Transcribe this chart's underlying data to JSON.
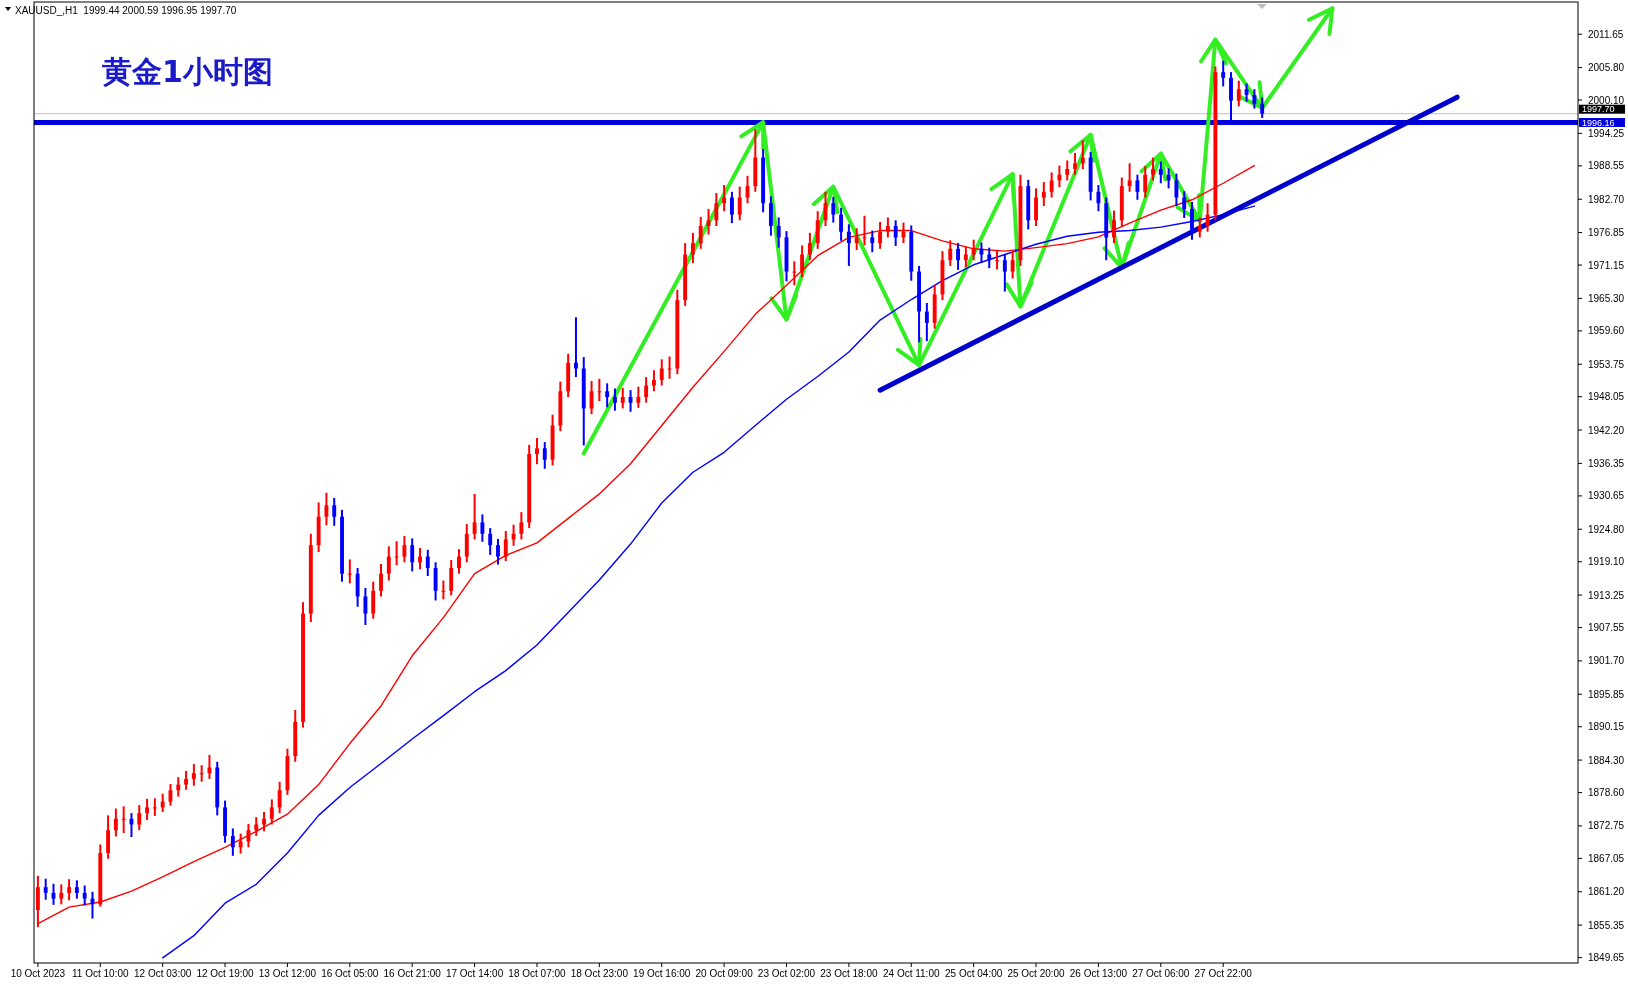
{
  "chart_data": {
    "type": "candlestick",
    "title": "黄金1小时图",
    "annotations": [
      "XAUUSD_,H1  1999.44 2000.59 1996.95 1997.70"
    ],
    "categories": [
      "10 Oct 2023",
      null,
      null,
      null,
      null,
      null,
      null,
      null,
      "11 Oct 10:00",
      null,
      null,
      null,
      null,
      null,
      null,
      null,
      "12 Oct 03:00",
      null,
      null,
      null,
      null,
      null,
      null,
      null,
      "12 Oct 19:00",
      null,
      null,
      null,
      null,
      null,
      null,
      null,
      "13 Oct 12:00",
      null,
      null,
      null,
      null,
      null,
      null,
      null,
      "16 Oct 05:00",
      null,
      null,
      null,
      null,
      null,
      null,
      null,
      "16 Oct 21:00",
      null,
      null,
      null,
      null,
      null,
      null,
      null,
      "17 Oct 14:00",
      null,
      null,
      null,
      null,
      null,
      null,
      null,
      "18 Oct 07:00",
      null,
      null,
      null,
      null,
      null,
      null,
      null,
      "18 Oct 23:00",
      null,
      null,
      null,
      null,
      null,
      null,
      null,
      "19 Oct 16:00",
      null,
      null,
      null,
      null,
      null,
      null,
      null,
      "20 Oct 09:00",
      null,
      null,
      null,
      null,
      null,
      null,
      null,
      "23 Oct 02:00",
      null,
      null,
      null,
      null,
      null,
      null,
      null,
      "23 Oct 18:00",
      null,
      null,
      null,
      null,
      null,
      null,
      null,
      "24 Oct 11:00",
      null,
      null,
      null,
      null,
      null,
      null,
      null,
      "25 Oct 04:00",
      null,
      null,
      null,
      null,
      null,
      null,
      null,
      "25 Oct 20:00",
      null,
      null,
      null,
      null,
      null,
      null,
      null,
      "26 Oct 13:00",
      null,
      null,
      null,
      null,
      null,
      null,
      null,
      "27 Oct 06:00",
      null,
      null,
      null,
      null,
      null,
      null,
      null,
      "27 Oct 22:00",
      null,
      null,
      null,
      null,
      null,
      null,
      null,
      null,
      null,
      null,
      null,
      null,
      null,
      null,
      null,
      null,
      null,
      null,
      null,
      null,
      null,
      null,
      null,
      null,
      null,
      null,
      null,
      null,
      null,
      null,
      null,
      null,
      null,
      null,
      null,
      null,
      null,
      null,
      null,
      null,
      null,
      null,
      null,
      null,
      null
    ],
    "colors": [
      "#ff0000",
      "#0000ff",
      "#0000ff",
      "#ff0000",
      "#ff0000",
      "#0000ff",
      "#0000ff",
      "#0000ff",
      "#ff0000",
      "#ff0000",
      "#ff0000",
      "#ff0000",
      "#0000ff",
      "#ff0000",
      "#ff0000",
      "#ff0000",
      "#ff0000",
      "#ff0000",
      "#ff0000",
      "#ff0000",
      "#ff0000",
      "#ff0000",
      "#ff0000",
      "#0000ff",
      "#0000ff",
      "#0000ff",
      "#ff0000",
      "#ff0000",
      "#ff0000",
      "#ff0000",
      "#ff0000",
      "#ff0000",
      "#ff0000",
      "#ff0000",
      "#ff0000",
      "#ff0000",
      "#ff0000",
      "#ff0000",
      "#0000ff",
      "#0000ff",
      "#ff0000",
      "#0000ff",
      "#0000ff",
      "#ff0000",
      "#ff0000",
      "#ff0000",
      "#ff0000",
      "#ff0000",
      "#0000ff",
      "#ff0000",
      "#0000ff",
      "#0000ff",
      "#ff0000",
      "#ff0000",
      "#ff0000",
      "#ff0000",
      "#ff0000",
      "#0000ff",
      "#0000ff",
      "#0000ff",
      "#ff0000",
      "#ff0000",
      "#ff0000",
      "#ff0000",
      "#ff0000",
      "#0000ff",
      "#ff0000",
      "#ff0000",
      "#ff0000",
      "#0000ff",
      "#0000ff",
      "#ff0000",
      "#ff0000",
      "#0000ff",
      "#0000ff",
      "#ff0000",
      "#0000ff",
      "#ff0000",
      "#ff0000",
      "#ff0000",
      "#ff0000",
      "#ff0000",
      "#ff0000",
      "#ff0000",
      "#ff0000",
      "#ff0000",
      "#ff0000",
      "#ff0000",
      "#ff0000",
      "#0000ff",
      "#ff0000",
      "#ff0000",
      "#ff0000",
      "#0000ff",
      "#0000ff",
      "#0000ff",
      "#0000ff",
      "#ff0000",
      "#ff0000",
      "#ff0000",
      "#ff0000",
      "#ff0000",
      "#0000ff",
      "#0000ff",
      "#0000ff",
      "#ff0000",
      "#ff0000",
      "#0000ff",
      "#ff0000",
      "#ff0000",
      "#0000ff",
      "#ff0000",
      "#0000ff",
      "#0000ff",
      "#0000ff",
      "#ff0000",
      "#ff0000",
      "#ff0000",
      "#0000ff",
      "#ff0000",
      "#ff0000",
      "#0000ff",
      "#0000ff",
      "#ff0000",
      "#0000ff",
      "#ff0000",
      "#ff0000",
      "#0000ff",
      "#ff0000",
      "#ff0000",
      "#ff0000",
      "#ff0000",
      "#ff0000",
      "#ff0000",
      "#ff0000",
      "#0000ff",
      "#0000ff",
      "#0000ff",
      "#ff0000",
      "#ff0000",
      "#ff0000",
      "#0000ff",
      "#ff0000",
      "#ff0000",
      "#0000ff",
      "#0000ff",
      "#0000ff",
      "#0000ff",
      "#0000ff",
      "#ff0000",
      "#ff0000",
      "#ff0000",
      "#0000ff",
      "#0000ff",
      "#ff0000",
      "#0000ff",
      "#0000ff",
      "#0000ff",
      null,
      null,
      null,
      null,
      null,
      null,
      null,
      null,
      null,
      null,
      null,
      null,
      null,
      null,
      null,
      null,
      null,
      null,
      null,
      null,
      null,
      null,
      null,
      null,
      null,
      null,
      null,
      null,
      null,
      null,
      null,
      null,
      null,
      null,
      null,
      null,
      null,
      null,
      null,
      null
    ],
    "ylim": [
      1848.7,
      2017.3
    ],
    "yticks": [
      2011.65,
      {
        "value": 2005.8,
        "label": "2005.80"
      },
      {
        "value": 2000.1,
        "label": "2000.10"
      },
      1994.25,
      1988.55,
      {
        "value": 1982.7,
        "label": "1982.70"
      },
      1976.85,
      1971.15,
      {
        "value": 1965.3,
        "label": "1965.30"
      },
      {
        "value": 1959.6,
        "label": "1959.60"
      },
      1953.75,
      1948.05,
      {
        "value": 1942.2,
        "label": "1942.20"
      },
      1936.35,
      1930.65,
      {
        "value": 1924.8,
        "label": "1924.80"
      },
      {
        "value": 1919.1,
        "label": "1919.10"
      },
      1913.25,
      1907.55,
      {
        "value": 1901.7,
        "label": "1901.70"
      },
      1895.85,
      1890.15,
      {
        "value": 1884.3,
        "label": "1884.30"
      },
      {
        "value": 1878.6,
        "label": "1878.60"
      },
      1872.75,
      1867.05,
      {
        "value": 1861.2,
        "label": "1861.20"
      },
      1855.35,
      1849.65
    ],
    "ref_lines": [
      {
        "axis": "y",
        "value": 1997.7,
        "label": "1997.70",
        "color": "#c0c0c0"
      },
      {
        "axis": "y",
        "value": 1996.16,
        "label": "1996.16",
        "color": "#0000dd"
      }
    ],
    "ohlc": [
      [
        1858,
        1864,
        1855,
        1862
      ],
      [
        1862,
        1863.5,
        1859.8,
        1861
      ],
      [
        1861,
        1862.6,
        1858.9,
        1860
      ],
      [
        1860,
        1862.5,
        1859,
        1861
      ],
      [
        1861,
        1863.4,
        1859.7,
        1862
      ],
      [
        1862,
        1863.2,
        1860,
        1861
      ],
      [
        1861,
        1862.3,
        1858.8,
        1860
      ],
      [
        1860,
        1861.2,
        1856.5,
        1859
      ],
      [
        1859,
        1869.5,
        1858.6,
        1868
      ],
      [
        1868,
        1874.6,
        1867,
        1872
      ],
      [
        1872,
        1875.8,
        1870.9,
        1874
      ],
      [
        1874,
        1876.2,
        1871.5,
        1874
      ],
      [
        1874,
        1875,
        1870.8,
        1873
      ],
      [
        1873,
        1876.4,
        1872,
        1875
      ],
      [
        1875,
        1877.5,
        1873.8,
        1876
      ],
      [
        1876,
        1877.6,
        1874.5,
        1876
      ],
      [
        1876,
        1878.4,
        1875.2,
        1877
      ],
      [
        1877,
        1880.1,
        1876.3,
        1879
      ],
      [
        1879,
        1881.3,
        1877.9,
        1880
      ],
      [
        1880,
        1882.4,
        1879.1,
        1881
      ],
      [
        1881,
        1883.6,
        1879.8,
        1882
      ],
      [
        1882,
        1883.4,
        1880.5,
        1882
      ],
      [
        1882,
        1885.2,
        1881,
        1883
      ],
      [
        1883,
        1884,
        1874.6,
        1876
      ],
      [
        1876,
        1877.2,
        1869.8,
        1871
      ],
      [
        1871,
        1872.3,
        1867.5,
        1869
      ],
      [
        1869,
        1871.4,
        1867.9,
        1870
      ],
      [
        1870,
        1873.1,
        1869,
        1872
      ],
      [
        1872,
        1874.3,
        1871,
        1873
      ],
      [
        1873,
        1875.2,
        1871.8,
        1874
      ],
      [
        1874,
        1877.4,
        1873,
        1876
      ],
      [
        1876,
        1880.5,
        1875,
        1879
      ],
      [
        1879,
        1886.3,
        1878.2,
        1885
      ],
      [
        1885,
        1893.1,
        1884,
        1891
      ],
      [
        1891,
        1912,
        1890,
        1910
      ],
      [
        1910,
        1924,
        1908.5,
        1922
      ],
      [
        1922,
        1929.5,
        1920.8,
        1927
      ],
      [
        1927,
        1931.2,
        1925.5,
        1929
      ],
      [
        1929,
        1930.3,
        1925.4,
        1927
      ],
      [
        1927,
        1928.2,
        1915.6,
        1917
      ],
      [
        1917,
        1919.5,
        1915.3,
        1917
      ],
      [
        1917,
        1918,
        1911.2,
        1913
      ],
      [
        1913,
        1914.5,
        1908,
        1910
      ],
      [
        1910,
        1915.6,
        1909.1,
        1914
      ],
      [
        1914,
        1918.7,
        1913,
        1917
      ],
      [
        1917,
        1921.8,
        1915.8,
        1920
      ],
      [
        1920,
        1922.7,
        1918.5,
        1920
      ],
      [
        1920,
        1923.6,
        1919,
        1922
      ],
      [
        1922,
        1923.2,
        1917.4,
        1919
      ],
      [
        1919,
        1921.5,
        1917.8,
        1920
      ],
      [
        1920,
        1921.2,
        1916.6,
        1918
      ],
      [
        1918,
        1919,
        1912.3,
        1914
      ],
      [
        1914,
        1915.8,
        1912.5,
        1914
      ],
      [
        1914,
        1919.4,
        1913.2,
        1918
      ],
      [
        1918,
        1921.3,
        1917,
        1920
      ],
      [
        1920,
        1925.7,
        1919,
        1924
      ],
      [
        1924,
        1931,
        1923,
        1926
      ],
      [
        1926,
        1927.4,
        1922.6,
        1924
      ],
      [
        1924,
        1925,
        1920.3,
        1922
      ],
      [
        1922,
        1923.1,
        1918.6,
        1920
      ],
      [
        1920,
        1924.5,
        1919.2,
        1923
      ],
      [
        1923,
        1925.6,
        1921.9,
        1924
      ],
      [
        1924,
        1927.8,
        1923,
        1926
      ],
      [
        1926,
        1939.6,
        1925,
        1938
      ],
      [
        1938,
        1940.8,
        1936.2,
        1939
      ],
      [
        1939,
        1940.1,
        1935.4,
        1937
      ],
      [
        1937,
        1944.9,
        1936,
        1943
      ],
      [
        1943,
        1950.7,
        1942,
        1949
      ],
      [
        1949,
        1955.6,
        1948,
        1954
      ],
      [
        1954,
        1962,
        1951.5,
        1953
      ],
      [
        1953,
        1955,
        1939.5,
        1946
      ],
      [
        1946,
        1950.8,
        1945,
        1949
      ],
      [
        1949,
        1951.2,
        1947.3,
        1949
      ],
      [
        1949,
        1950.4,
        1946.2,
        1948
      ],
      [
        1948,
        1949.5,
        1945.6,
        1947
      ],
      [
        1947,
        1949.6,
        1946,
        1948
      ],
      [
        1948,
        1949.2,
        1945.4,
        1947
      ],
      [
        1947,
        1949.8,
        1946.1,
        1948
      ],
      [
        1948,
        1951.5,
        1947,
        1950
      ],
      [
        1950,
        1952.7,
        1949,
        1951
      ],
      [
        1951,
        1954.6,
        1950,
        1953
      ],
      [
        1953,
        1955.1,
        1951.2,
        1953
      ],
      [
        1953,
        1966.8,
        1952,
        1965
      ],
      [
        1965,
        1975,
        1964,
        1973
      ],
      [
        1973,
        1976.8,
        1971.5,
        1975
      ],
      [
        1975,
        1979.6,
        1974,
        1978
      ],
      [
        1978,
        1981,
        1976.5,
        1979
      ],
      [
        1979,
        1983.8,
        1978,
        1982
      ],
      [
        1982,
        1985.2,
        1980.6,
        1983
      ],
      [
        1983,
        1984,
        1978.5,
        1980
      ],
      [
        1980,
        1984.9,
        1979,
        1983
      ],
      [
        1983,
        1986.8,
        1982,
        1985
      ],
      [
        1985,
        1995,
        1984,
        1990
      ],
      [
        1990,
        1991.5,
        1980.4,
        1982
      ],
      [
        1982,
        1983.2,
        1976.3,
        1978
      ],
      [
        1978,
        1979.5,
        1974.2,
        1976
      ],
      [
        1976,
        1977.1,
        1968.3,
        1970
      ],
      [
        1970,
        1971.8,
        1967.6,
        1970
      ],
      [
        1970,
        1974.6,
        1969,
        1973
      ],
      [
        1973,
        1976.8,
        1972,
        1975
      ],
      [
        1975,
        1980.6,
        1974,
        1979
      ],
      [
        1979,
        1984,
        1978,
        1982
      ],
      [
        1982,
        1983.1,
        1978.6,
        1980
      ],
      [
        1980,
        1981.2,
        1975.4,
        1977
      ],
      [
        1977,
        1978.3,
        1971,
        1975
      ],
      [
        1975,
        1977.6,
        1973.8,
        1976
      ],
      [
        1976,
        1979.8,
        1974.6,
        1976
      ],
      [
        1976,
        1977.2,
        1973.4,
        1975
      ],
      [
        1975,
        1978.7,
        1974,
        1977
      ],
      [
        1977,
        1979.5,
        1976,
        1978
      ],
      [
        1978,
        1979,
        1974.5,
        1976
      ],
      [
        1976,
        1978.6,
        1975,
        1977
      ],
      [
        1977,
        1978.1,
        1968.4,
        1970
      ],
      [
        1970,
        1971,
        1957.6,
        1963
      ],
      [
        1963,
        1964.5,
        1957.8,
        1961
      ],
      [
        1961,
        1967.7,
        1960,
        1966
      ],
      [
        1966,
        1973.6,
        1965,
        1972
      ],
      [
        1972,
        1975.5,
        1971,
        1974
      ],
      [
        1974,
        1975,
        1970.3,
        1972
      ],
      [
        1972,
        1974.4,
        1970.8,
        1973
      ],
      [
        1973,
        1975.6,
        1972,
        1974
      ],
      [
        1974,
        1975.1,
        1971.5,
        1973
      ],
      [
        1973,
        1974.2,
        1970.6,
        1972
      ],
      [
        1972,
        1973.8,
        1970.4,
        1972
      ],
      [
        1972,
        1973,
        1966.5,
        1970
      ],
      [
        1970,
        1973.5,
        1968.8,
        1972
      ],
      [
        1972,
        1987,
        1971,
        1985
      ],
      [
        1985,
        1986.1,
        1977.4,
        1979
      ],
      [
        1979,
        1984.6,
        1978,
        1983
      ],
      [
        1983,
        1985.7,
        1981.5,
        1984
      ],
      [
        1984,
        1987.4,
        1983,
        1986
      ],
      [
        1986,
        1988.6,
        1984.8,
        1987
      ],
      [
        1987,
        1989.5,
        1986,
        1988
      ],
      [
        1988,
        1990.8,
        1987,
        1989
      ],
      [
        1989,
        1993,
        1988,
        1990
      ],
      [
        1990,
        1991,
        1982.5,
        1984
      ],
      [
        1984,
        1985.2,
        1980.6,
        1982
      ],
      [
        1982,
        1983,
        1972,
        1976
      ],
      [
        1976,
        1980.7,
        1975,
        1979
      ],
      [
        1979,
        1986.5,
        1978,
        1985
      ],
      [
        1985,
        1989,
        1984,
        1986
      ],
      [
        1986,
        1987,
        1982.6,
        1984
      ],
      [
        1984,
        1988.5,
        1983,
        1987
      ],
      [
        1987,
        1990,
        1986,
        1988
      ],
      [
        1988,
        1989.3,
        1985.5,
        1987
      ],
      [
        1987,
        1988.1,
        1984.6,
        1986
      ],
      [
        1986,
        1987.2,
        1981.5,
        1983
      ],
      [
        1983,
        1984.1,
        1979.4,
        1981
      ],
      [
        1981,
        1982.2,
        1975.6,
        1977
      ],
      [
        1977,
        1979.5,
        1976,
        1978
      ],
      [
        1978,
        1982,
        1977,
        1980
      ],
      [
        1980,
        2006,
        1979,
        2005
      ],
      [
        2005,
        2007,
        2002.5,
        2004
      ],
      [
        2004,
        2005,
        1996.5,
        2000
      ],
      [
        2000,
        2003.5,
        1999,
        2002
      ],
      [
        2002,
        2003,
        1999.8,
        2001
      ],
      [
        2001,
        2002,
        1998.6,
        1999.44
      ],
      [
        1999.44,
        2000.59,
        1996.95,
        1997.7
      ],
      null,
      null,
      null,
      null,
      null,
      null,
      null,
      null,
      null,
      null,
      null,
      null,
      null,
      null,
      null,
      null,
      null,
      null,
      null,
      null,
      null,
      null,
      null,
      null,
      null,
      null,
      null,
      null,
      null,
      null,
      null,
      null,
      null,
      null,
      null,
      null,
      null,
      null,
      null,
      null
    ],
    "series": [
      {
        "type": "line",
        "color": "#33ee22",
        "values": [
          null,
          null,
          null,
          null,
          null,
          null,
          null,
          null,
          null,
          null,
          null,
          null,
          null,
          null,
          null,
          null,
          null,
          null,
          null,
          null,
          null,
          null,
          null,
          null,
          null,
          null,
          null,
          null,
          null,
          null,
          null,
          null,
          null,
          null,
          null,
          null,
          null,
          null,
          null,
          null,
          null,
          null,
          null,
          null,
          null,
          null,
          null,
          null,
          null,
          null,
          null,
          null,
          null,
          null,
          null,
          null,
          null,
          null,
          null,
          null,
          null,
          null,
          null,
          null,
          null,
          null,
          null,
          null,
          null,
          null,
          1938.1,
          null,
          null,
          null,
          null,
          null,
          null,
          null,
          null,
          null,
          null,
          null,
          null,
          null,
          null,
          null,
          null,
          null,
          null,
          null,
          null,
          null,
          null,
          1996.2,
          null,
          null,
          1961.6,
          null,
          null,
          null,
          null,
          null,
          1984.9,
          null,
          null,
          null,
          null,
          null,
          null,
          null,
          null,
          null,
          null,
          1953.6,
          null,
          null,
          null,
          null,
          null,
          null,
          null,
          null,
          null,
          null,
          null,
          1987.1,
          1963.9,
          null,
          null,
          null,
          null,
          null,
          null,
          null,
          null,
          1994,
          null,
          null,
          null,
          1970.7,
          null,
          null,
          null,
          null,
          1990.7,
          null,
          null,
          null,
          null,
          1978.9,
          null,
          2010.7,
          null,
          null,
          null,
          null,
          null,
          1998.7,
          null,
          null,
          null,
          null,
          null,
          null,
          null,
          null,
          2016.2,
          null,
          null,
          null,
          null,
          null,
          null,
          null,
          null,
          null,
          null,
          null,
          null,
          null,
          null,
          null,
          null,
          null,
          null,
          null,
          null,
          null,
          null,
          null,
          null,
          null,
          null,
          null,
          null,
          null,
          null,
          null
        ]
      },
      {
        "type": "line",
        "color": "#ff0000",
        "values": [
          1855.6,
          null,
          null,
          null,
          1858.5,
          null,
          null,
          null,
          1859.4,
          null,
          null,
          null,
          1861.3,
          null,
          null,
          null,
          1863.8,
          null,
          null,
          null,
          1866.5,
          null,
          null,
          null,
          1869,
          null,
          null,
          null,
          1871.8,
          null,
          null,
          null,
          1874.8,
          null,
          null,
          null,
          1880,
          null,
          null,
          null,
          1887.2,
          null,
          null,
          null,
          1893.8,
          null,
          null,
          null,
          1902.6,
          null,
          null,
          null,
          1909.3,
          null,
          null,
          null,
          1917,
          null,
          null,
          null,
          1920.2,
          null,
          null,
          null,
          1922.4,
          null,
          null,
          null,
          1926.7,
          null,
          null,
          null,
          1931,
          null,
          null,
          null,
          1936.3,
          null,
          null,
          null,
          1943,
          null,
          null,
          null,
          1949.7,
          null,
          null,
          null,
          1956,
          null,
          null,
          null,
          1962.5,
          null,
          null,
          null,
          1967.6,
          null,
          null,
          null,
          1972.8,
          null,
          null,
          null,
          1976,
          null,
          null,
          null,
          1977.2,
          null,
          null,
          null,
          1977.2,
          null,
          null,
          null,
          1975.4,
          null,
          null,
          null,
          1974,
          null,
          null,
          null,
          1973.6,
          null,
          null,
          null,
          1974.2,
          null,
          null,
          null,
          1974.9,
          null,
          null,
          null,
          1976.1,
          null,
          null,
          null,
          1978.5,
          null,
          null,
          null,
          1980.8,
          null,
          null,
          null,
          1982.6,
          null,
          null,
          null,
          1985.5,
          null,
          null,
          null,
          1988.6,
          null,
          null,
          null,
          null,
          null,
          null,
          null,
          null,
          null,
          null,
          null,
          null,
          null,
          null,
          null,
          null,
          null,
          null,
          null,
          null,
          null,
          null,
          null,
          null,
          null,
          null,
          null,
          null,
          null,
          null,
          null,
          null,
          null,
          null,
          null,
          null,
          null,
          null,
          null,
          null,
          null
        ]
      },
      {
        "type": "line",
        "color": "#0000ff",
        "values": [
          null,
          null,
          null,
          null,
          null,
          null,
          null,
          null,
          null,
          null,
          null,
          null,
          null,
          null,
          null,
          null,
          1849.6,
          null,
          null,
          null,
          1853.5,
          null,
          null,
          null,
          1859.2,
          null,
          null,
          null,
          1862.5,
          null,
          null,
          null,
          1868,
          null,
          null,
          null,
          1874.6,
          null,
          null,
          null,
          1879.5,
          null,
          null,
          null,
          1883.7,
          null,
          null,
          null,
          1888,
          null,
          null,
          null,
          1892.1,
          null,
          null,
          null,
          1896.3,
          null,
          null,
          null,
          1900,
          null,
          null,
          null,
          1904.5,
          null,
          null,
          null,
          1910.2,
          null,
          null,
          null,
          1915.9,
          null,
          null,
          null,
          1922.2,
          null,
          null,
          null,
          1929.4,
          null,
          null,
          null,
          1934.8,
          null,
          null,
          null,
          1938.3,
          null,
          null,
          null,
          1943,
          null,
          null,
          null,
          1947.6,
          null,
          null,
          null,
          1951.6,
          null,
          null,
          null,
          1955.9,
          null,
          null,
          null,
          1961.5,
          null,
          null,
          null,
          1965.1,
          null,
          null,
          null,
          1968.4,
          null,
          null,
          null,
          1971.2,
          null,
          null,
          null,
          1973,
          null,
          null,
          null,
          1974.8,
          null,
          null,
          null,
          1976.2,
          null,
          null,
          null,
          1976.9,
          null,
          null,
          null,
          1977.2,
          null,
          null,
          null,
          1977.8,
          null,
          null,
          null,
          1978.8,
          null,
          null,
          null,
          1980,
          null,
          null,
          null,
          1981.5,
          null,
          null,
          null,
          null,
          null,
          null,
          null,
          null,
          null,
          null,
          null,
          null,
          null,
          null,
          null,
          null,
          null,
          null,
          null,
          null,
          null,
          null,
          null,
          null,
          null,
          null,
          null,
          null,
          null,
          null,
          null,
          null,
          null,
          null,
          null,
          null,
          null,
          null,
          null,
          null,
          null
        ]
      },
      {
        "type": "line",
        "color": "#0000cc",
        "values": [
          null,
          null,
          null,
          null,
          null,
          null,
          null,
          null,
          null,
          null,
          null,
          null,
          null,
          null,
          null,
          null,
          null,
          null,
          null,
          null,
          null,
          null,
          null,
          null,
          null,
          null,
          null,
          null,
          null,
          null,
          null,
          null,
          null,
          null,
          null,
          null,
          null,
          null,
          null,
          null,
          null,
          null,
          null,
          null,
          null,
          null,
          null,
          null,
          null,
          null,
          null,
          null,
          null,
          null,
          null,
          null,
          null,
          null,
          null,
          null,
          null,
          null,
          null,
          null,
          null,
          null,
          null,
          null,
          null,
          null,
          null,
          null,
          null,
          null,
          null,
          null,
          null,
          null,
          null,
          null,
          null,
          null,
          null,
          null,
          null,
          null,
          null,
          null,
          null,
          null,
          null,
          null,
          null,
          null,
          null,
          null,
          null,
          null,
          null,
          null,
          null,
          null,
          null,
          null,
          null,
          null,
          null,
          null,
          1949.2,
          null,
          null,
          null,
          null,
          null,
          null,
          null,
          null,
          null,
          null,
          null,
          null,
          null,
          null,
          null,
          null,
          null,
          null,
          null,
          null,
          null,
          null,
          null,
          null,
          null,
          null,
          null,
          null,
          null,
          null,
          null,
          null,
          null,
          null,
          null,
          null,
          null,
          null,
          null,
          null,
          null,
          null,
          null,
          null,
          null,
          null,
          null,
          null,
          null,
          null,
          null,
          null,
          null,
          null,
          null,
          null,
          null,
          null,
          null,
          null,
          null,
          null,
          null,
          null,
          null,
          null,
          null,
          null,
          null,
          null,
          null,
          null,
          null,
          2000.6,
          null,
          null,
          null,
          null,
          null,
          null,
          null,
          null,
          null,
          null,
          null,
          null,
          null,
          null,
          null
        ]
      }
    ]
  }
}
